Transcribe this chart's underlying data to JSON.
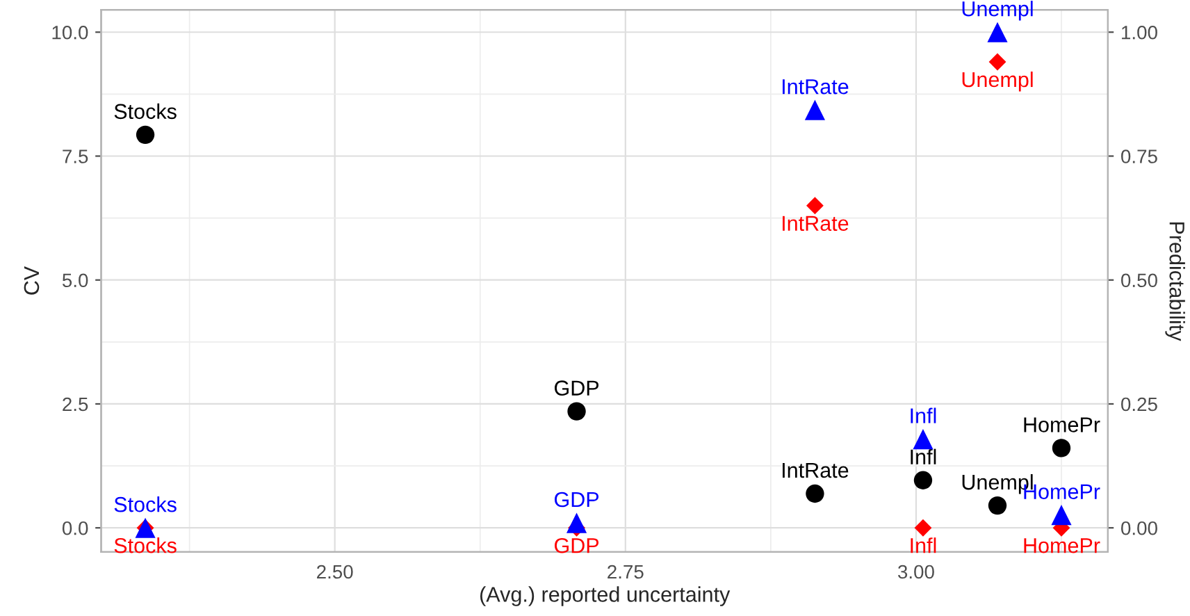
{
  "chart_data": {
    "type": "scatter",
    "xlabel": "(Avg.) reported uncertainty",
    "ylabel": "CV",
    "y2label": "Predictability",
    "x": [
      2.337,
      2.708,
      2.913,
      3.006,
      3.07,
      3.125
    ],
    "series": [
      {
        "color": "#000000",
        "marker": "circle",
        "values": [
          7.93,
          2.35,
          0.69,
          0.96,
          0.45,
          1.61
        ],
        "value_labels": [
          "Stocks",
          "GDP",
          "IntRate",
          "Infl",
          "Unempl",
          "HomePr"
        ]
      },
      {
        "color": "#ff0000",
        "marker": "diamond",
        "axis": "y2",
        "values": [
          0.0,
          0.0,
          0.65,
          0.0,
          0.94,
          0.0
        ],
        "value_labels": [
          "Stocks",
          "GDP",
          "IntRate",
          "Infl",
          "Unempl",
          "HomePr"
        ]
      },
      {
        "color": "#0000ff",
        "marker": "triangle",
        "axis": "y2",
        "values": [
          0.0,
          0.01,
          0.843,
          0.179,
          1.0,
          0.026
        ],
        "value_labels": [
          "Stocks",
          "GDP",
          "IntRate",
          "Infl",
          "Unempl",
          "HomePr"
        ]
      }
    ],
    "xlim": [
      2.299,
      3.165
    ],
    "xticks": [
      {
        "value": 2.5,
        "label": "2.50"
      },
      2.75,
      {
        "value": 3.0,
        "label": "3.00"
      }
    ],
    "ylim": [
      -0.486,
      10.45
    ],
    "yticks": [
      {
        "value": 0,
        "label": "0.0"
      },
      2.5,
      {
        "value": 5,
        "label": "5.0"
      },
      7.5,
      {
        "value": 10,
        "label": "10.0"
      }
    ],
    "y2lim": [
      -0.0486,
      1.045
    ],
    "y2ticks": [
      {
        "value": 0,
        "label": "0.00"
      },
      0.25,
      {
        "value": 0.5,
        "label": "0.50"
      },
      0.75,
      {
        "value": 1,
        "label": "1.00"
      }
    ],
    "grid": true,
    "legend": false
  }
}
